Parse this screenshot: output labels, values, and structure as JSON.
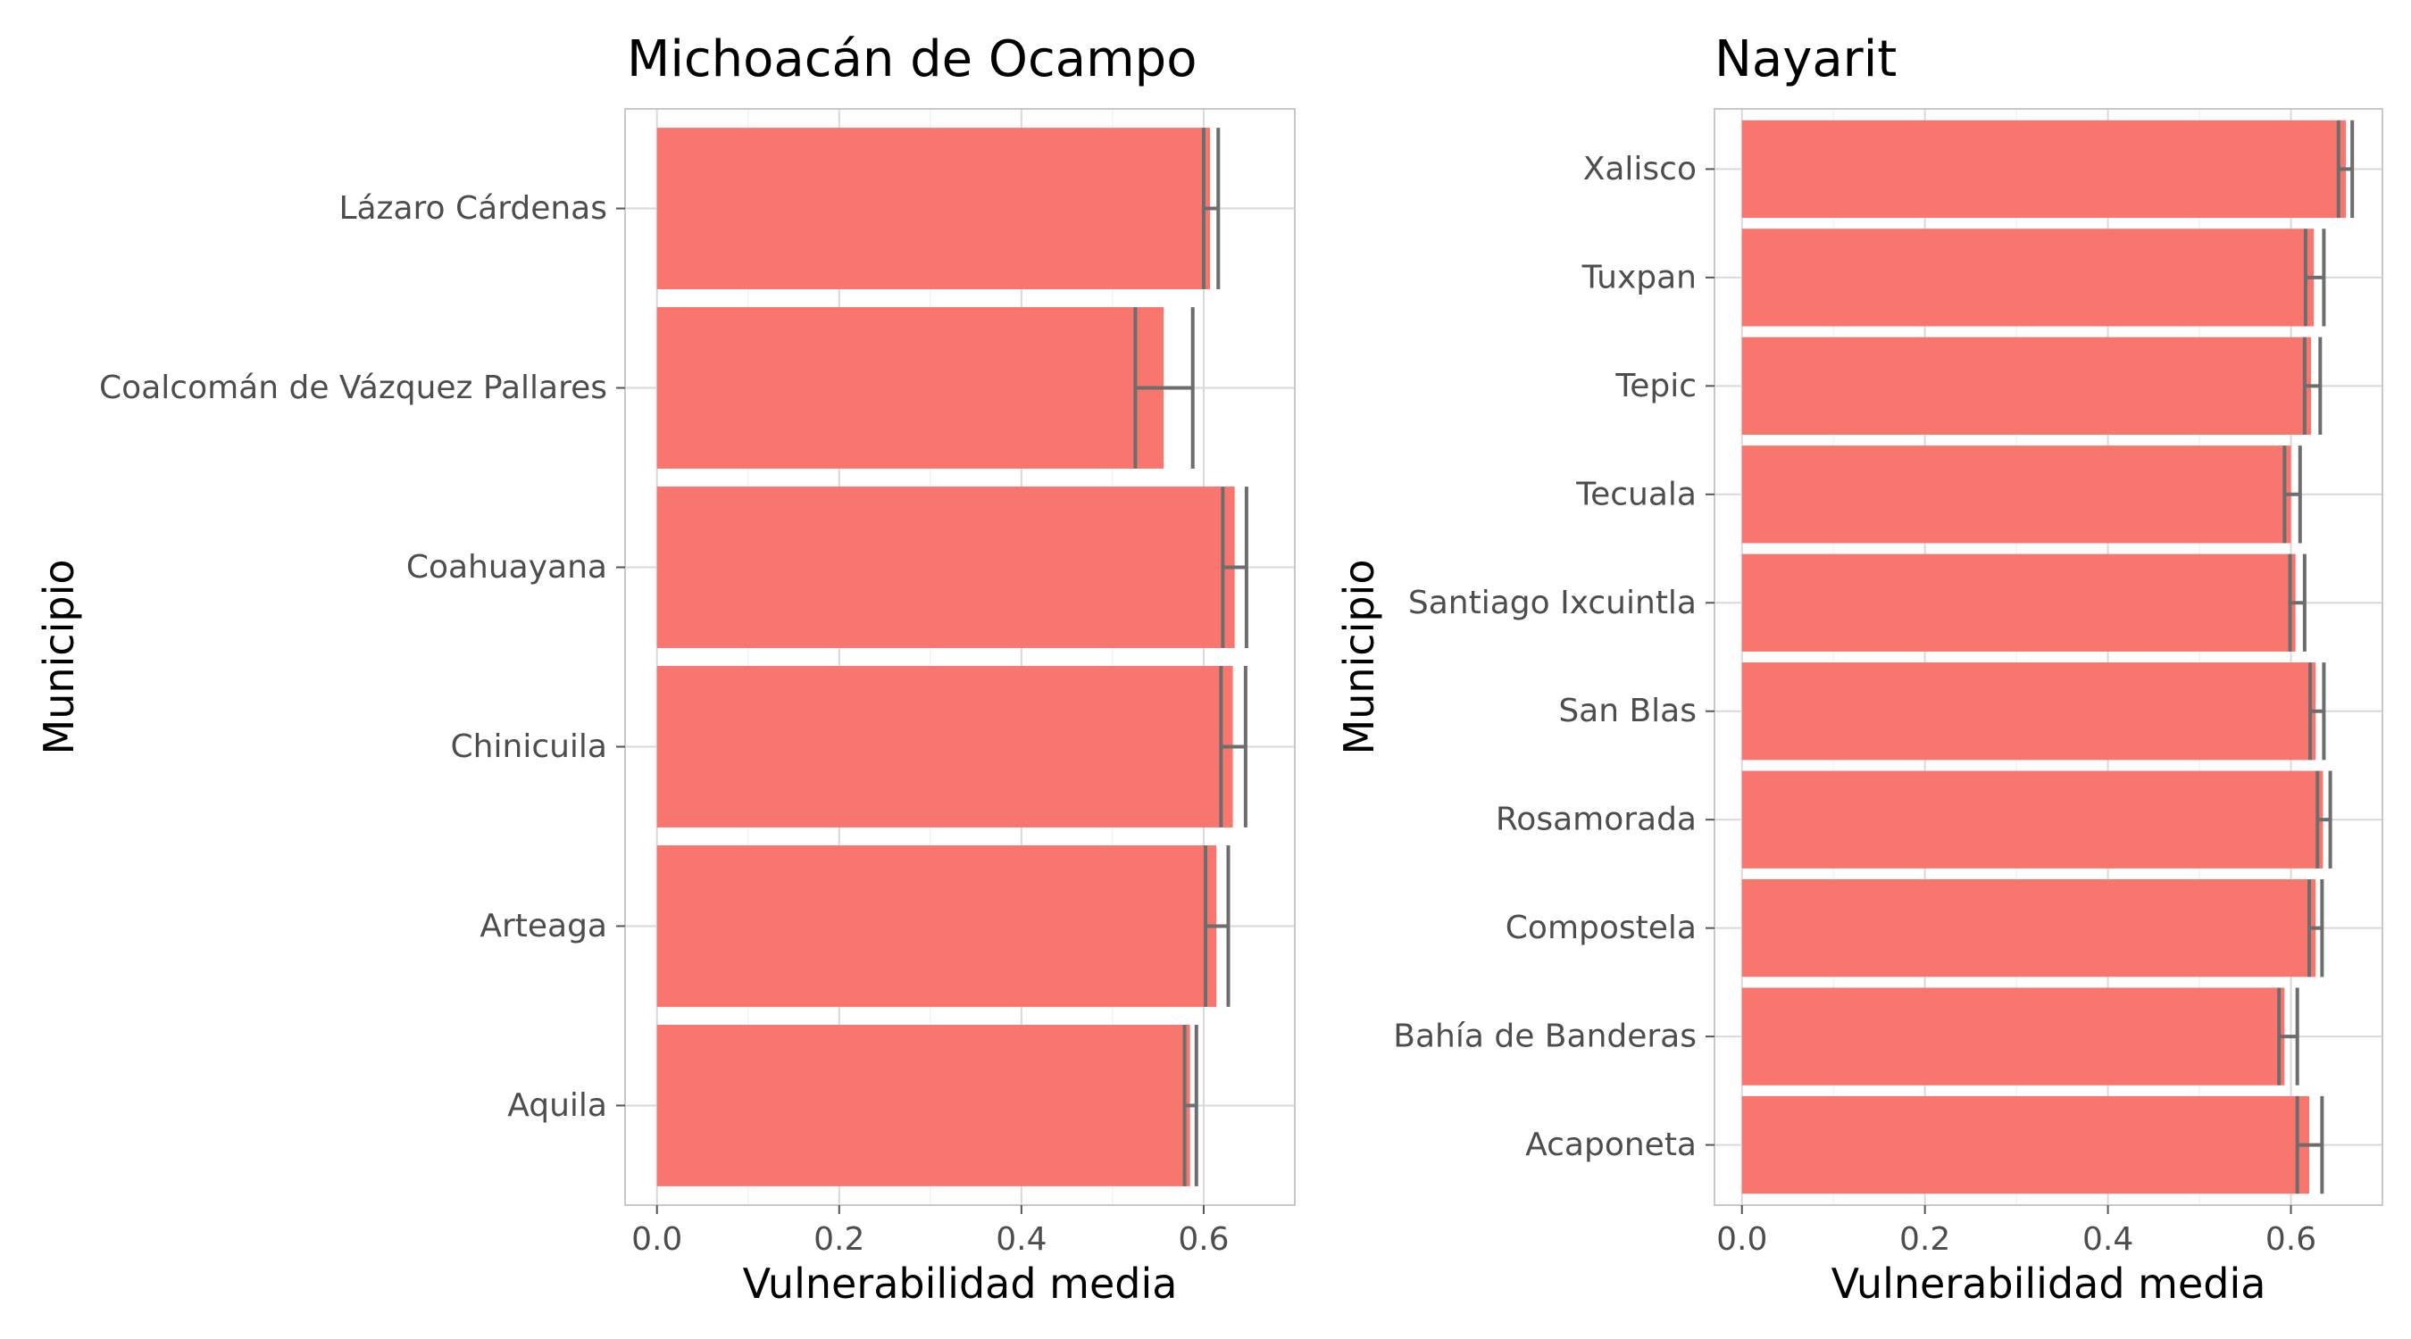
{
  "chart_data": [
    {
      "type": "bar",
      "orientation": "horizontal",
      "title": "Michoacán de Ocampo",
      "xlabel": "Vulnerabilidad media",
      "ylabel": "Municipio",
      "xlim": [
        -0.035,
        0.7
      ],
      "xticks": [
        "0.0",
        "0.2",
        "0.4",
        "0.6"
      ],
      "bar_color": "#F8766D",
      "errorbar_color": "#6d6d6d",
      "grid": true,
      "categories": [
        "Lázaro Cárdenas",
        "Coalcomán de Vázquez Pallares",
        "Coahuayana",
        "Chinicuila",
        "Arteaga",
        "Aquila"
      ],
      "values": [
        0.607,
        0.556,
        0.634,
        0.632,
        0.614,
        0.585
      ],
      "error_low": [
        0.6,
        0.525,
        0.621,
        0.619,
        0.602,
        0.579
      ],
      "error_high": [
        0.616,
        0.588,
        0.647,
        0.646,
        0.627,
        0.592
      ]
    },
    {
      "type": "bar",
      "orientation": "horizontal",
      "title": "Nayarit",
      "xlabel": "Vulnerabilidad media",
      "ylabel": "Municipio",
      "xlim": [
        -0.03,
        0.7
      ],
      "xticks": [
        "0.0",
        "0.2",
        "0.4",
        "0.6"
      ],
      "bar_color": "#F8766D",
      "errorbar_color": "#6d6d6d",
      "grid": true,
      "categories": [
        "Xalisco",
        "Tuxpan",
        "Tepic",
        "Tecuala",
        "Santiago Ixcuintla",
        "San Blas",
        "Rosamorada",
        "Compostela",
        "Bahía de Banderas",
        "Acaponeta"
      ],
      "values": [
        0.66,
        0.625,
        0.622,
        0.6,
        0.605,
        0.627,
        0.635,
        0.627,
        0.593,
        0.62
      ],
      "error_low": [
        0.652,
        0.616,
        0.615,
        0.593,
        0.599,
        0.621,
        0.629,
        0.62,
        0.587,
        0.607
      ],
      "error_high": [
        0.667,
        0.636,
        0.632,
        0.61,
        0.615,
        0.636,
        0.643,
        0.634,
        0.607,
        0.634
      ]
    }
  ]
}
